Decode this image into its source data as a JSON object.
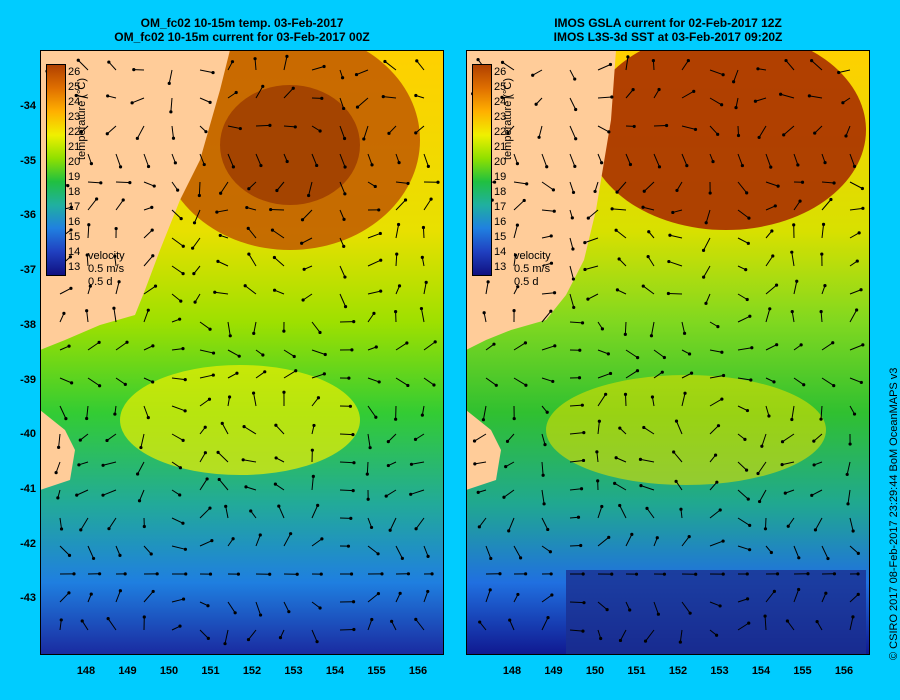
{
  "left": {
    "title_line1": "OM_fc02 10-15m temp. 03-Feb-2017",
    "title_line2": "OM_fc02 10-15m current for 03-Feb-2017 00Z"
  },
  "right": {
    "title_line1": "IMOS GSLA current for 02-Feb-2017 12Z",
    "title_line2": "IMOS L3S-3d SST at 03-Feb-2017 09:20Z"
  },
  "colorbar": {
    "ticks": [
      "26",
      "25",
      "24",
      "23",
      "22",
      "21",
      "20",
      "19",
      "18",
      "17",
      "16",
      "15",
      "14",
      "13"
    ],
    "label": "temperature (°C)"
  },
  "velocity": {
    "label": "velocity",
    "speed": "0.5 m/s",
    "time": "0.5 d"
  },
  "y_ticks": [
    "-34",
    "-35",
    "-36",
    "-37",
    "-38",
    "-39",
    "-40",
    "-41",
    "-42",
    "-43"
  ],
  "x_ticks": [
    "148",
    "149",
    "150",
    "151",
    "152",
    "153",
    "154",
    "155",
    "156"
  ],
  "credit": "© CSIRO 2017   08-Feb-2017 23:29:44 BoM OceanMAPS v3",
  "colors": {
    "background": "#00ccff",
    "land": "#ffcc99"
  }
}
